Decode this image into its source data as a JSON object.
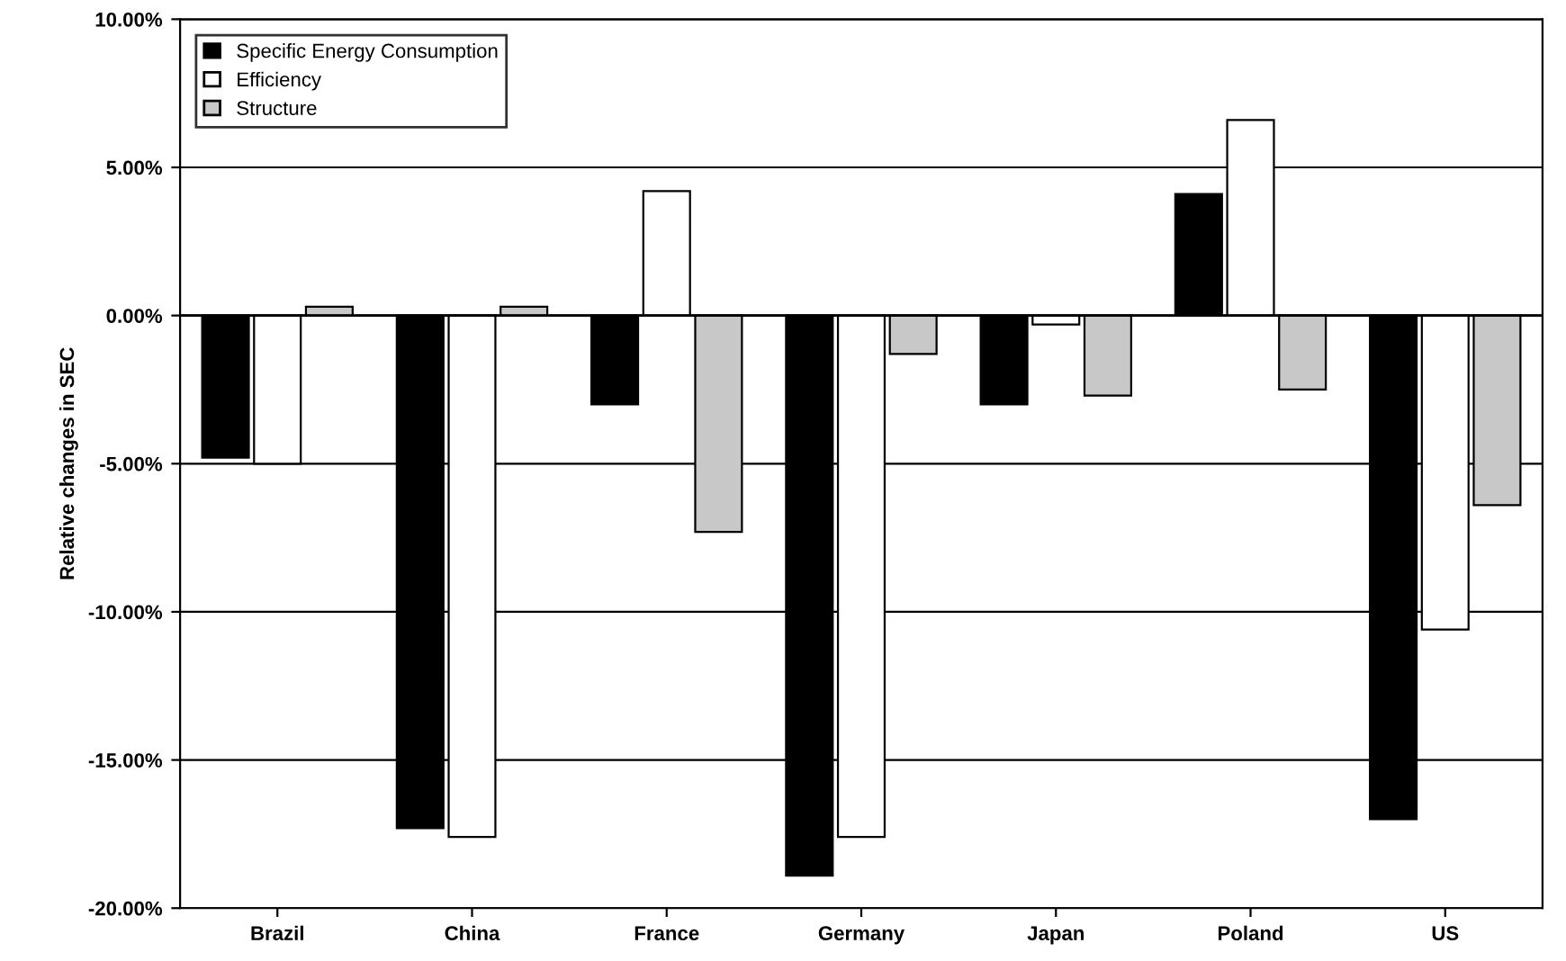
{
  "chart_data": {
    "type": "bar",
    "ylabel": "Relative changes in SEC",
    "categories": [
      "Brazil",
      "China",
      "France",
      "Germany",
      "Japan",
      "Poland",
      "US"
    ],
    "series": [
      {
        "name": "Specific Energy Consumption",
        "color": "#000000",
        "values": [
          -4.8,
          -17.3,
          -3.0,
          -18.9,
          -3.0,
          4.1,
          -17.0
        ]
      },
      {
        "name": "Efficiency",
        "color": "#ffffff",
        "values": [
          -5.0,
          -17.6,
          4.2,
          -17.6,
          -0.3,
          6.6,
          -10.6
        ]
      },
      {
        "name": "Structure",
        "color": "#c8c8c8",
        "values": [
          0.3,
          0.3,
          -7.3,
          -1.3,
          -2.7,
          -2.5,
          -6.4
        ]
      }
    ],
    "ylim": [
      -20,
      10
    ],
    "yticks": [
      {
        "value": -20,
        "label": "-20.00%"
      },
      {
        "value": -15,
        "label": "-15.00%"
      },
      {
        "value": -10,
        "label": "-10.00%"
      },
      {
        "value": -5,
        "label": "-5.00%"
      },
      {
        "value": 0,
        "label": "0.00%"
      },
      {
        "value": 5,
        "label": "5.00%"
      },
      {
        "value": 10,
        "label": "10.00%"
      }
    ],
    "grid": "y",
    "legend": "top left"
  }
}
